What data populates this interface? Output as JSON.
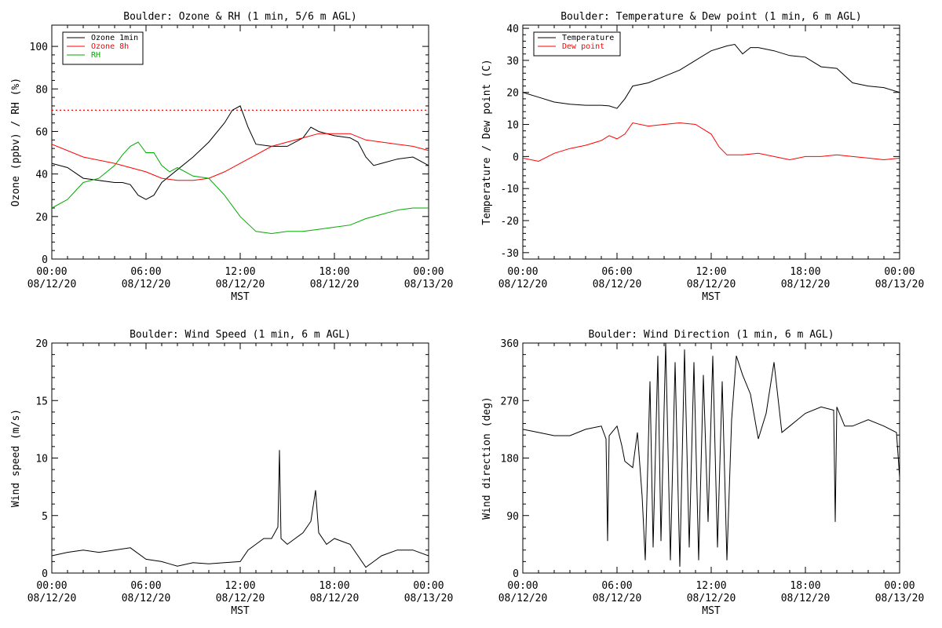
{
  "charts": [
    {
      "title": "Boulder: Ozone & RH (1 min, 5/6 m AGL)",
      "ylabel": "Ozone (ppbv) / RH (%)",
      "xlabel": "MST",
      "ylim": [
        0,
        110
      ],
      "yticks": [
        0,
        20,
        40,
        60,
        80,
        100
      ],
      "legend": [
        "Ozone 1min",
        "Ozone 8h",
        "RH"
      ]
    },
    {
      "title": "Boulder: Temperature & Dew point (1 min, 6 m AGL)",
      "ylabel": "Temperature / Dew point (C)",
      "xlabel": "MST",
      "ylim": [
        -32,
        41
      ],
      "yticks": [
        -30,
        -20,
        -10,
        0,
        10,
        20,
        30,
        40
      ],
      "legend": [
        "Temperature",
        "Dew point"
      ]
    },
    {
      "title": "Boulder: Wind Speed (1 min, 6 m AGL)",
      "ylabel": "Wind speed (m/s)",
      "xlabel": "MST",
      "ylim": [
        0,
        20
      ],
      "yticks": [
        0,
        5,
        10,
        15,
        20
      ],
      "legend": []
    },
    {
      "title": "Boulder: Wind Direction (1 min, 6 m AGL)",
      "ylabel": "Wind direction (deg)",
      "xlabel": "MST",
      "ylim": [
        0,
        360
      ],
      "yticks": [
        0,
        90,
        180,
        270,
        360
      ],
      "legend": []
    }
  ],
  "xticks": [
    {
      "time": "00:00",
      "date": "08/12/20"
    },
    {
      "time": "06:00",
      "date": "08/12/20"
    },
    {
      "time": "12:00",
      "date": "08/12/20"
    },
    {
      "time": "18:00",
      "date": "08/12/20"
    },
    {
      "time": "00:00",
      "date": "08/13/20"
    }
  ],
  "chart_data": [
    {
      "type": "line",
      "title": "Boulder: Ozone & RH (1 min, 5/6 m AGL)",
      "xlabel": "MST",
      "ylabel": "Ozone (ppbv) / RH (%)",
      "x_unit": "hours MST (0 = 08/12/20 00:00)",
      "xlim": [
        0,
        24
      ],
      "ylim": [
        0,
        110
      ],
      "reference_line": {
        "y": 70,
        "style": "dotted",
        "color": "#ff0000"
      },
      "series": [
        {
          "name": "Ozone 1min",
          "color": "#000000",
          "x": [
            0,
            1,
            2,
            3,
            4,
            4.5,
            5,
            5.5,
            6,
            6.5,
            7,
            8,
            9,
            10,
            11,
            11.5,
            12,
            12.5,
            13,
            14,
            15,
            16,
            16.5,
            17,
            18,
            19,
            19.5,
            20,
            20.5,
            21,
            22,
            23,
            24
          ],
          "y": [
            45,
            43,
            38,
            37,
            36,
            36,
            35,
            30,
            28,
            30,
            36,
            42,
            48,
            55,
            64,
            70,
            72,
            62,
            54,
            53,
            53,
            57,
            62,
            60,
            58,
            57,
            55,
            48,
            44,
            45,
            47,
            48,
            44
          ]
        },
        {
          "name": "Ozone 8h",
          "color": "#ff0000",
          "x": [
            0,
            2,
            4,
            6,
            7,
            8,
            9,
            10,
            11,
            12,
            13,
            14,
            15,
            16,
            17,
            18,
            19,
            20,
            21,
            22,
            23,
            24
          ],
          "y": [
            54,
            48,
            45,
            41,
            38,
            37,
            37,
            38,
            41,
            45,
            49,
            53,
            55,
            57,
            59,
            59,
            59,
            56,
            55,
            54,
            53,
            51
          ]
        },
        {
          "name": "RH",
          "color": "#00aa00",
          "x": [
            0,
            1,
            2,
            3,
            4,
            4.5,
            5,
            5.5,
            6,
            6.5,
            7,
            7.5,
            8,
            9,
            10,
            11,
            12,
            13,
            14,
            15,
            16,
            17,
            18,
            19,
            20,
            21,
            22,
            23,
            24
          ],
          "y": [
            24,
            28,
            36,
            38,
            44,
            49,
            53,
            55,
            50,
            50,
            44,
            41,
            43,
            39,
            38,
            30,
            20,
            13,
            12,
            13,
            13,
            14,
            15,
            16,
            19,
            21,
            23,
            24,
            24
          ]
        }
      ]
    },
    {
      "type": "line",
      "title": "Boulder: Temperature & Dew point (1 min, 6 m AGL)",
      "xlabel": "MST",
      "ylabel": "Temperature / Dew point (C)",
      "x_unit": "hours MST (0 = 08/12/20 00:00)",
      "xlim": [
        0,
        24
      ],
      "ylim": [
        -32,
        41
      ],
      "series": [
        {
          "name": "Temperature",
          "color": "#000000",
          "x": [
            0,
            1,
            2,
            3,
            4,
            5,
            5.5,
            6,
            6.5,
            7,
            8,
            9,
            10,
            11,
            12,
            13,
            13.5,
            14,
            14.5,
            15,
            16,
            17,
            18,
            19,
            20,
            21,
            22,
            23,
            24
          ],
          "y": [
            20,
            18.5,
            17,
            16.3,
            16,
            16,
            15.8,
            15,
            18,
            22,
            23,
            25,
            27,
            30,
            33,
            34.5,
            35,
            32,
            34,
            34,
            33,
            31.5,
            31,
            28,
            27.5,
            23,
            22,
            21.5,
            20
          ]
        },
        {
          "name": "Dew point",
          "color": "#ff0000",
          "x": [
            0,
            1,
            2,
            3,
            4,
            5,
            5.5,
            6,
            6.5,
            7,
            8,
            9,
            10,
            11,
            12,
            12.5,
            13,
            14,
            15,
            16,
            17,
            18,
            19,
            20,
            21,
            22,
            23,
            24
          ],
          "y": [
            -0.5,
            -1.5,
            1,
            2.5,
            3.5,
            5,
            6.5,
            5.5,
            7,
            10.5,
            9.5,
            10,
            10.5,
            10,
            7,
            3,
            0.5,
            0.5,
            1,
            0,
            -1,
            0,
            0,
            0.5,
            0,
            -0.5,
            -1,
            -0.5
          ]
        }
      ]
    },
    {
      "type": "line",
      "title": "Boulder: Wind Speed (1 min, 6 m AGL)",
      "xlabel": "MST",
      "ylabel": "Wind speed (m/s)",
      "x_unit": "hours MST (0 = 08/12/20 00:00)",
      "xlim": [
        0,
        24
      ],
      "ylim": [
        0,
        20
      ],
      "series": [
        {
          "name": "",
          "color": "#000000",
          "x": [
            0,
            1,
            2,
            3,
            4,
            5,
            6,
            7,
            7.5,
            8,
            9,
            10,
            11,
            12,
            12.5,
            13,
            13.5,
            14,
            14.4,
            14.5,
            14.6,
            15,
            15.5,
            16,
            16.5,
            16.8,
            17,
            17.5,
            18,
            19,
            19.5,
            20,
            20.5,
            21,
            22,
            23,
            24
          ],
          "y": [
            1.5,
            1.8,
            2.0,
            1.8,
            2.0,
            2.2,
            1.2,
            1.0,
            0.8,
            0.6,
            0.9,
            0.8,
            0.9,
            1.0,
            2.0,
            2.5,
            3.0,
            3.0,
            4.0,
            10.7,
            3.0,
            2.5,
            3.0,
            3.5,
            4.5,
            7.2,
            3.5,
            2.5,
            3.0,
            2.5,
            1.5,
            0.5,
            1.0,
            1.5,
            2.0,
            2.0,
            1.5
          ]
        }
      ]
    },
    {
      "type": "line",
      "title": "Boulder: Wind Direction (1 min, 6 m AGL)",
      "xlabel": "MST",
      "ylabel": "Wind direction (deg)",
      "x_unit": "hours MST (0 = 08/12/20 00:00)",
      "xlim": [
        0,
        24
      ],
      "ylim": [
        0,
        360
      ],
      "series": [
        {
          "name": "",
          "color": "#000000",
          "x": [
            0,
            1,
            2,
            3,
            4,
            5,
            5.3,
            5.4,
            5.5,
            6,
            6.3,
            6.5,
            7,
            7.3,
            7.6,
            7.8,
            8.1,
            8.3,
            8.6,
            8.8,
            9.1,
            9.4,
            9.7,
            10,
            10.3,
            10.6,
            10.9,
            11.2,
            11.5,
            11.8,
            12.1,
            12.4,
            12.7,
            13,
            13.3,
            13.6,
            14,
            14.5,
            15,
            15.5,
            16,
            16.5,
            17,
            18,
            19,
            19.8,
            19.9,
            20,
            20.5,
            21,
            22,
            23,
            23.8,
            24
          ],
          "y": [
            225,
            220,
            215,
            215,
            225,
            230,
            210,
            50,
            215,
            230,
            200,
            175,
            165,
            220,
            120,
            20,
            300,
            40,
            340,
            50,
            360,
            20,
            330,
            10,
            350,
            40,
            330,
            20,
            310,
            80,
            340,
            40,
            300,
            20,
            240,
            340,
            310,
            280,
            210,
            250,
            330,
            220,
            230,
            250,
            260,
            255,
            80,
            260,
            230,
            230,
            240,
            230,
            220,
            150
          ]
        }
      ]
    }
  ]
}
